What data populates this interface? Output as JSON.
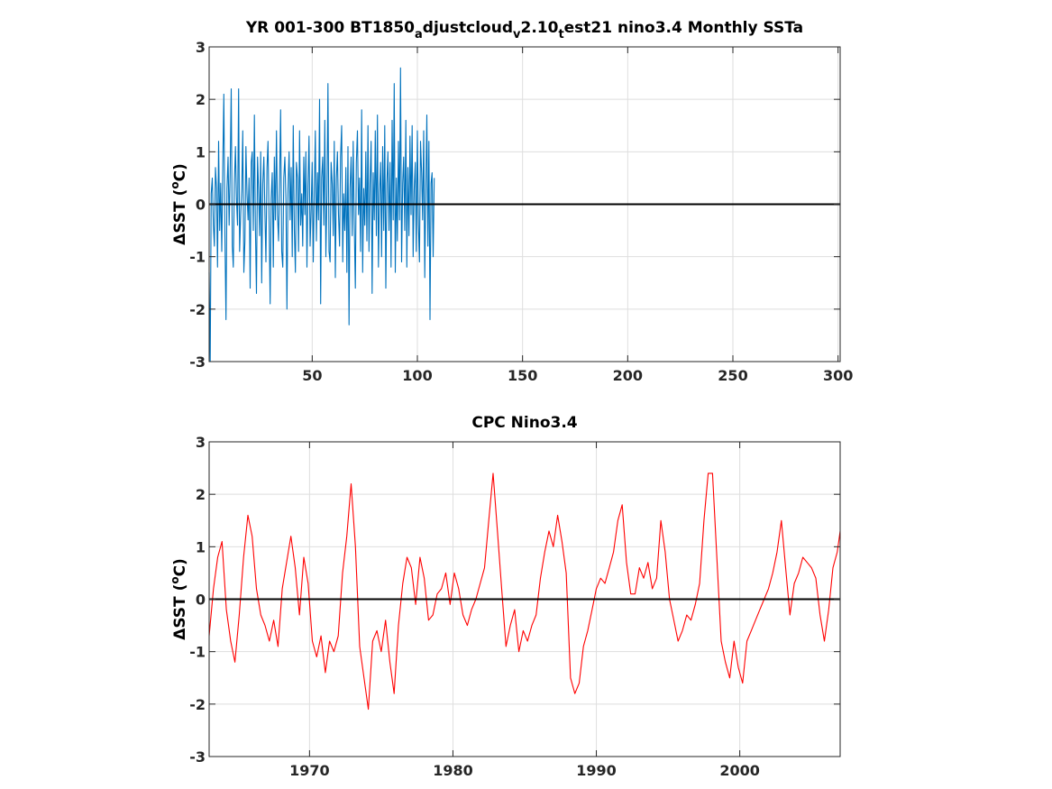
{
  "chart_data": [
    {
      "type": "line",
      "title": "YR 001-300 BT1850adjustcloudv2.10test21 nino3.4 Monthly SSTa",
      "title_parts": {
        "p1": "YR 001-300 BT1850",
        "s1": "a",
        "p2": "djustcloud",
        "s2": "v",
        "p3": "2.10",
        "s3": "t",
        "p4": "est21 nino3.4 Monthly SSTa"
      },
      "xlabel": "",
      "ylabel": "ΔSST (°C)",
      "ylabel_parts": {
        "delta": "Δ",
        "text": "SST (",
        "sup": "o",
        "unit": "C)"
      },
      "xlim": [
        1,
        301
      ],
      "ylim": [
        -3,
        3
      ],
      "xticks": [
        50,
        100,
        150,
        200,
        250,
        300
      ],
      "yticks": [
        -3,
        -2,
        -1,
        0,
        1,
        2,
        3
      ],
      "grid": true,
      "series": [
        {
          "color": "#0072bd",
          "x_start": 1,
          "x_step": 0.5,
          "values": [
            -1.3,
            -3.0,
            0.2,
            0.5,
            -0.4,
            -0.8,
            0.7,
            0.3,
            -1.2,
            1.2,
            -0.5,
            0.4,
            -0.9,
            0.8,
            2.1,
            -0.6,
            -2.2,
            0.3,
            0.9,
            -0.4,
            0.6,
            2.2,
            -0.8,
            -1.2,
            0.4,
            1.1,
            0.1,
            -0.4,
            2.2,
            -0.9,
            -0.2,
            0.3,
            1.4,
            -1.3,
            -0.7,
            1.1,
            0.2,
            -0.3,
            0.5,
            -1.6,
            0.8,
            1.0,
            -0.5,
            1.7,
            -0.4,
            -1.7,
            0.9,
            0.3,
            -0.6,
            1.0,
            -1.5,
            0.4,
            0.9,
            -0.1,
            -1.1,
            0.7,
            1.2,
            -0.3,
            -1.9,
            0.1,
            0.6,
            -1.2,
            0.9,
            -0.3,
            1.4,
            -0.2,
            -0.7,
            0.5,
            1.8,
            -0.9,
            -1.2,
            0.5,
            0.9,
            0.1,
            -2.0,
            0.3,
            1.0,
            -0.3,
            0.7,
            -1.0,
            1.5,
            -0.5,
            -1.3,
            0.8,
            0.5,
            -0.9,
            1.4,
            -0.4,
            0.2,
            -0.8,
            0.9,
            -0.2,
            1.0,
            -1.2,
            0.4,
            1.3,
            -0.8,
            -0.1,
            0.8,
            -1.1,
            0.3,
            1.4,
            -0.7,
            0.6,
            -0.3,
            2.0,
            -1.9,
            0.5,
            0.9,
            -0.4,
            1.6,
            -1.0,
            0.2,
            2.3,
            -0.9,
            -1.1,
            0.8,
            0.4,
            -0.6,
            1.2,
            -1.4,
            0.5,
            1.0,
            -0.2,
            -0.8,
            0.9,
            1.5,
            -1.1,
            0.2,
            -0.5,
            0.7,
            -1.3,
            1.1,
            -2.3,
            0.3,
            0.9,
            -0.6,
            1.2,
            -0.4,
            -1.6,
            0.8,
            1.4,
            -0.2,
            0.5,
            -0.9,
            1.8,
            -1.3,
            0.3,
            -0.4,
            1.0,
            -0.7,
            1.5,
            -0.9,
            0.4,
            1.2,
            -1.7,
            0.6,
            -0.3,
            1.4,
            -0.6,
            1.7,
            -1.2,
            0.2,
            0.8,
            -1.0,
            1.1,
            -0.5,
            1.5,
            -1.6,
            0.4,
            1.0,
            -0.5,
            0.8,
            -1.2,
            1.6,
            -0.3,
            2.3,
            -1.3,
            0.5,
            -0.7,
            1.2,
            -0.3,
            2.6,
            -1.1,
            0.4,
            0.9,
            -0.5,
            1.6,
            -1.2,
            0.7,
            -0.6,
            1.3,
            -0.2,
            1.5,
            -1.0,
            0.3,
            0.8,
            -0.9,
            1.4,
            -0.4,
            -1.1,
            1.2,
            0.6,
            -0.3,
            1.4,
            -1.4,
            0.2,
            1.7,
            -0.8,
            1.2,
            -2.2,
            0.4,
            0.6,
            -1.0,
            0.5
          ]
        }
      ]
    },
    {
      "type": "line",
      "title": "CPC Nino3.4",
      "xlabel": "",
      "ylabel": "ΔSST (°C)",
      "ylabel_parts": {
        "delta": "Δ",
        "text": "SST (",
        "sup": "o",
        "unit": "C)"
      },
      "xlim": [
        1963,
        2007
      ],
      "ylim": [
        -3,
        3
      ],
      "xticks": [
        1970,
        1980,
        1990,
        2000
      ],
      "yticks": [
        -3,
        -2,
        -1,
        0,
        1,
        2,
        3
      ],
      "grid": true,
      "series": [
        {
          "color": "#ff0000",
          "x": [
            1963.0,
            1963.3,
            1963.6,
            1963.9,
            1964.2,
            1964.5,
            1964.8,
            1965.1,
            1965.4,
            1965.7,
            1966.0,
            1966.3,
            1966.6,
            1966.9,
            1967.2,
            1967.5,
            1967.8,
            1968.1,
            1968.4,
            1968.7,
            1969.0,
            1969.3,
            1969.6,
            1969.9,
            1970.2,
            1970.5,
            1970.8,
            1971.1,
            1971.4,
            1971.7,
            1972.0,
            1972.3,
            1972.6,
            1972.9,
            1973.2,
            1973.5,
            1973.8,
            1974.1,
            1974.4,
            1974.7,
            1975.0,
            1975.3,
            1975.6,
            1975.9,
            1976.2,
            1976.5,
            1976.8,
            1977.1,
            1977.4,
            1977.7,
            1978.0,
            1978.3,
            1978.6,
            1978.9,
            1979.2,
            1979.5,
            1979.8,
            1980.1,
            1980.4,
            1980.7,
            1981.0,
            1981.3,
            1981.6,
            1981.9,
            1982.2,
            1982.5,
            1982.8,
            1983.1,
            1983.4,
            1983.7,
            1984.0,
            1984.3,
            1984.6,
            1984.9,
            1985.2,
            1985.5,
            1985.8,
            1986.1,
            1986.4,
            1986.7,
            1987.0,
            1987.3,
            1987.6,
            1987.9,
            1988.2,
            1988.5,
            1988.8,
            1989.1,
            1989.4,
            1989.7,
            1990.0,
            1990.3,
            1990.6,
            1990.9,
            1991.2,
            1991.5,
            1991.8,
            1992.1,
            1992.4,
            1992.7,
            1993.0,
            1993.3,
            1993.6,
            1993.9,
            1994.2,
            1994.5,
            1994.8,
            1995.1,
            1995.4,
            1995.7,
            1996.0,
            1996.3,
            1996.6,
            1996.9,
            1997.2,
            1997.5,
            1997.8,
            1998.1,
            1998.4,
            1998.7,
            1999.0,
            1999.3,
            1999.6,
            1999.9,
            2000.2,
            2000.5,
            2000.8,
            2001.1,
            2001.4,
            2001.7,
            2002.0,
            2002.3,
            2002.6,
            2002.9,
            2003.2,
            2003.5,
            2003.8,
            2004.1,
            2004.4,
            2004.7,
            2005.0,
            2005.3,
            2005.6,
            2005.9,
            2006.2,
            2006.5,
            2006.8,
            2007.0
          ],
          "values": [
            -0.7,
            0.2,
            0.8,
            1.1,
            -0.2,
            -0.8,
            -1.2,
            -0.3,
            0.8,
            1.6,
            1.2,
            0.2,
            -0.3,
            -0.5,
            -0.8,
            -0.4,
            -0.9,
            0.2,
            0.7,
            1.2,
            0.6,
            -0.3,
            0.8,
            0.3,
            -0.8,
            -1.1,
            -0.7,
            -1.4,
            -0.8,
            -1.0,
            -0.7,
            0.5,
            1.2,
            2.2,
            1.0,
            -0.9,
            -1.5,
            -2.1,
            -0.8,
            -0.6,
            -1.0,
            -0.4,
            -1.2,
            -1.8,
            -0.5,
            0.3,
            0.8,
            0.6,
            -0.1,
            0.8,
            0.4,
            -0.4,
            -0.3,
            0.1,
            0.2,
            0.5,
            -0.1,
            0.5,
            0.2,
            -0.3,
            -0.5,
            -0.2,
            0.0,
            0.3,
            0.6,
            1.5,
            2.4,
            1.3,
            0.2,
            -0.9,
            -0.5,
            -0.2,
            -1.0,
            -0.6,
            -0.8,
            -0.5,
            -0.3,
            0.4,
            0.9,
            1.3,
            1.0,
            1.6,
            1.1,
            0.5,
            -1.5,
            -1.8,
            -1.6,
            -0.9,
            -0.6,
            -0.2,
            0.2,
            0.4,
            0.3,
            0.6,
            0.9,
            1.5,
            1.8,
            0.7,
            0.1,
            0.1,
            0.6,
            0.4,
            0.7,
            0.2,
            0.4,
            1.5,
            0.9,
            0.0,
            -0.4,
            -0.8,
            -0.6,
            -0.3,
            -0.4,
            -0.1,
            0.3,
            1.5,
            2.4,
            2.4,
            0.8,
            -0.8,
            -1.2,
            -1.5,
            -0.8,
            -1.3,
            -1.6,
            -0.8,
            -0.6,
            -0.4,
            -0.2,
            0.0,
            0.2,
            0.5,
            0.9,
            1.5,
            0.6,
            -0.3,
            0.3,
            0.5,
            0.8,
            0.7,
            0.6,
            0.4,
            -0.3,
            -0.8,
            -0.2,
            0.6,
            0.9,
            1.3
          ]
        }
      ]
    }
  ]
}
